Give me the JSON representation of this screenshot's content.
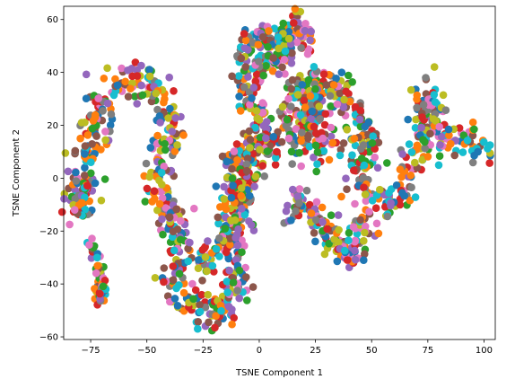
{
  "chart_data": {
    "type": "scatter",
    "title": "",
    "xlabel": "TSNE Component 1",
    "ylabel": "TSNE Component 2",
    "xlim": [
      -87,
      105
    ],
    "ylim": [
      -61,
      65
    ],
    "xticks": [
      -75,
      -50,
      -25,
      0,
      25,
      50,
      75,
      100
    ],
    "yticks": [
      -60,
      -40,
      -20,
      0,
      20,
      40,
      60
    ],
    "grid": false,
    "legend": "none",
    "colors": [
      "#1f77b4",
      "#ff7f0e",
      "#2ca02c",
      "#d62728",
      "#9467bd",
      "#8c564b",
      "#e377c2",
      "#7f7f7f",
      "#bcbd22",
      "#17becf"
    ],
    "curves": [
      {
        "x": [
          -79,
          -80,
          -78,
          -76,
          -74,
          -73,
          -71,
          -69,
          -67,
          -64,
          -60,
          -56,
          -53,
          -49,
          -45,
          -42,
          -40,
          -39,
          -40,
          -42,
          -44,
          -45,
          -46,
          -45,
          -43,
          -40,
          -37,
          -34,
          -33,
          -34,
          -36,
          -38,
          -38,
          -36,
          -33,
          -29,
          -25,
          -22,
          -19,
          -16,
          -13,
          -11,
          -10,
          -11,
          -13,
          -14,
          -14,
          -12,
          -9,
          -7,
          -6,
          -5,
          -3,
          0,
          3,
          5,
          7,
          9,
          11,
          13,
          15,
          17,
          19,
          21,
          22,
          23,
          24,
          24,
          22,
          20,
          19,
          20,
          22,
          23,
          23,
          21,
          19,
          18,
          19,
          22,
          25,
          28,
          30,
          31,
          29,
          26,
          23,
          22,
          23,
          27,
          31,
          35,
          38,
          40,
          42,
          44,
          46,
          47,
          47,
          46,
          45,
          45,
          46,
          48,
          50,
          53,
          56,
          59,
          62,
          64,
          66,
          67,
          68,
          70,
          72,
          74,
          76,
          76,
          75,
          74,
          74,
          75,
          76,
          77,
          79,
          82,
          85,
          88,
          91,
          94,
          96,
          98,
          100
        ],
        "y": [
          -12,
          -6,
          1,
          8,
          14,
          20,
          25,
          30,
          34,
          36,
          38,
          39,
          38,
          36,
          32,
          28,
          24,
          20,
          15,
          10,
          6,
          2,
          -2,
          -6,
          -10,
          -14,
          -17,
          -21,
          -25,
          -29,
          -32,
          -35,
          -39,
          -43,
          -47,
          -50,
          -52,
          -53,
          -51,
          -48,
          -44,
          -40,
          -36,
          -32,
          -27,
          -22,
          -17,
          -12,
          -8,
          -4,
          0,
          4,
          7,
          9,
          10,
          11,
          13,
          15,
          17,
          20,
          22,
          24,
          26,
          28,
          30,
          33,
          36,
          38,
          37,
          36,
          34,
          32,
          30,
          27,
          24,
          21,
          18,
          15,
          12,
          10,
          9,
          9,
          10,
          12,
          15,
          18,
          21,
          25,
          29,
          32,
          34,
          34,
          32,
          29,
          25,
          21,
          17,
          13,
          9,
          5,
          1,
          -3,
          -7,
          -10,
          -12,
          -13,
          -12,
          -9,
          -6,
          -3,
          1,
          5,
          9,
          13,
          17,
          21,
          25,
          28,
          31,
          33,
          31,
          27,
          23,
          19,
          15,
          13,
          12,
          12,
          13,
          14,
          14,
          14,
          14
        ],
        "spread": 3.8
      },
      {
        "x": [
          -9,
          -7,
          -5,
          -3,
          0,
          3,
          6,
          9,
          12,
          15,
          18,
          20,
          21
        ],
        "y": [
          44,
          48,
          51,
          53,
          53,
          52,
          52,
          53,
          55,
          57,
          58,
          55,
          51
        ],
        "spread": 3
      },
      {
        "x": [
          -29,
          -26,
          -23,
          -20,
          -17,
          -14,
          -12,
          -10,
          -9,
          -8,
          -8,
          -10,
          -12,
          -13,
          -12,
          -10,
          -8,
          -5,
          -2,
          0,
          1,
          2,
          1,
          -1,
          -3,
          -5,
          -6,
          -6,
          -5,
          -3,
          0,
          3,
          5,
          7,
          9,
          11,
          13,
          14,
          15,
          16,
          17
        ],
        "y": [
          -36,
          -33,
          -31,
          -30,
          -28,
          -25,
          -22,
          -19,
          -16,
          -12,
          -8,
          -5,
          -2,
          1,
          4,
          7,
          10,
          12,
          13,
          14,
          16,
          19,
          22,
          25,
          27,
          29,
          32,
          35,
          38,
          40,
          41,
          42,
          43,
          44,
          46,
          48,
          51,
          53,
          55,
          57,
          58
        ],
        "spread": 3.2
      },
      {
        "x": [
          -74,
          -73,
          -72,
          -71,
          -70,
          -70,
          -71,
          -72
        ],
        "y": [
          -25,
          -29,
          -33,
          -37,
          -40,
          -43,
          -45,
          -47
        ],
        "spread": 1.5
      },
      {
        "x": [
          -77,
          -78,
          -79,
          -80,
          -80,
          -79
        ],
        "y": [
          -2,
          -5,
          -8,
          -10,
          -12,
          -14
        ],
        "spread": 1
      },
      {
        "x": [
          15,
          17,
          19,
          21,
          23,
          26,
          29,
          32,
          35,
          38,
          41,
          43,
          44,
          45,
          46
        ],
        "y": [
          -12,
          -8,
          -9,
          -10,
          -12,
          -15,
          -20,
          -24,
          -26,
          -28,
          -29,
          -27,
          -24,
          -20,
          -16
        ],
        "spread": 3
      }
    ],
    "num_points": 1900
  }
}
